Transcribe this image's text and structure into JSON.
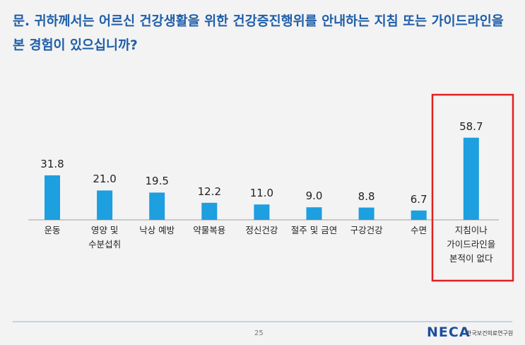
{
  "chart_data": {
    "type": "bar",
    "title": "문. 귀하께서는 어르신 건강생활을 위한 건강증진행위를 안내하는 지침 또는 가이드라인을 본 경험이 있으십니까?",
    "categories": [
      "운동",
      "영양 및\n수분섭취",
      "낙상 예방",
      "약물복용",
      "정신건강",
      "절주 및 금연",
      "구강건강",
      "수면",
      "지침이나\n가이드라인을\n본적이 없다"
    ],
    "values": [
      31.8,
      21.0,
      19.5,
      12.2,
      11.0,
      9.0,
      8.8,
      6.7,
      58.7
    ],
    "value_labels": [
      "31.8",
      "21.0",
      "19.5",
      "12.2",
      "11.0",
      "9.0",
      "8.8",
      "6.7",
      "58.7"
    ],
    "color": "#1d9fe0"
  },
  "footer": {
    "page": "25",
    "logo": "NECA",
    "org": "한국보건의료연구원"
  }
}
